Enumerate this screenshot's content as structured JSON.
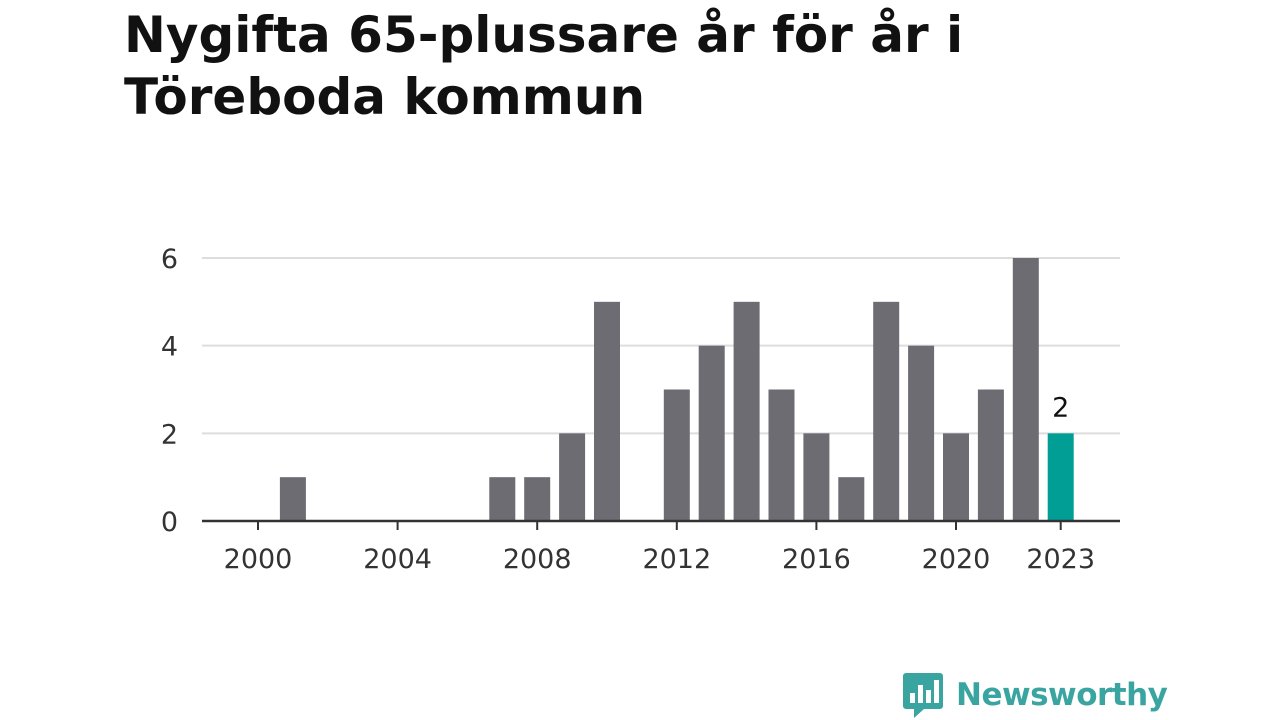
{
  "title": "Nygifta 65-plussare år för år i Töreboda kommun",
  "brand": {
    "name": "Newsworthy",
    "logo_icon": "bar-chart-speech-bubble-icon",
    "color": "#3aa5a0"
  },
  "colors": {
    "bar": "#6d6c72",
    "highlight": "#009e94",
    "grid": "#dddddd",
    "axis": "#333333"
  },
  "chart_data": {
    "type": "bar",
    "title": "Nygifta 65-plussare år för år i Töreboda kommun",
    "xlabel": "",
    "ylabel": "",
    "categories": [
      2000,
      2001,
      2002,
      2003,
      2004,
      2005,
      2006,
      2007,
      2008,
      2009,
      2010,
      2011,
      2012,
      2013,
      2014,
      2015,
      2016,
      2017,
      2018,
      2019,
      2020,
      2021,
      2022,
      2023
    ],
    "values": [
      0,
      1,
      0,
      0,
      0,
      0,
      0,
      1,
      1,
      2,
      5,
      0,
      3,
      4,
      5,
      3,
      2,
      1,
      5,
      4,
      2,
      3,
      6,
      2
    ],
    "highlight_category": 2023,
    "highlight_label": "2",
    "x_ticks": [
      "2000",
      "2004",
      "2008",
      "2012",
      "2016",
      "2020",
      "2023"
    ],
    "y_ticks": [
      "0",
      "2",
      "4",
      "6"
    ],
    "ylim": [
      0,
      6
    ],
    "grid": true,
    "legend": "none"
  }
}
